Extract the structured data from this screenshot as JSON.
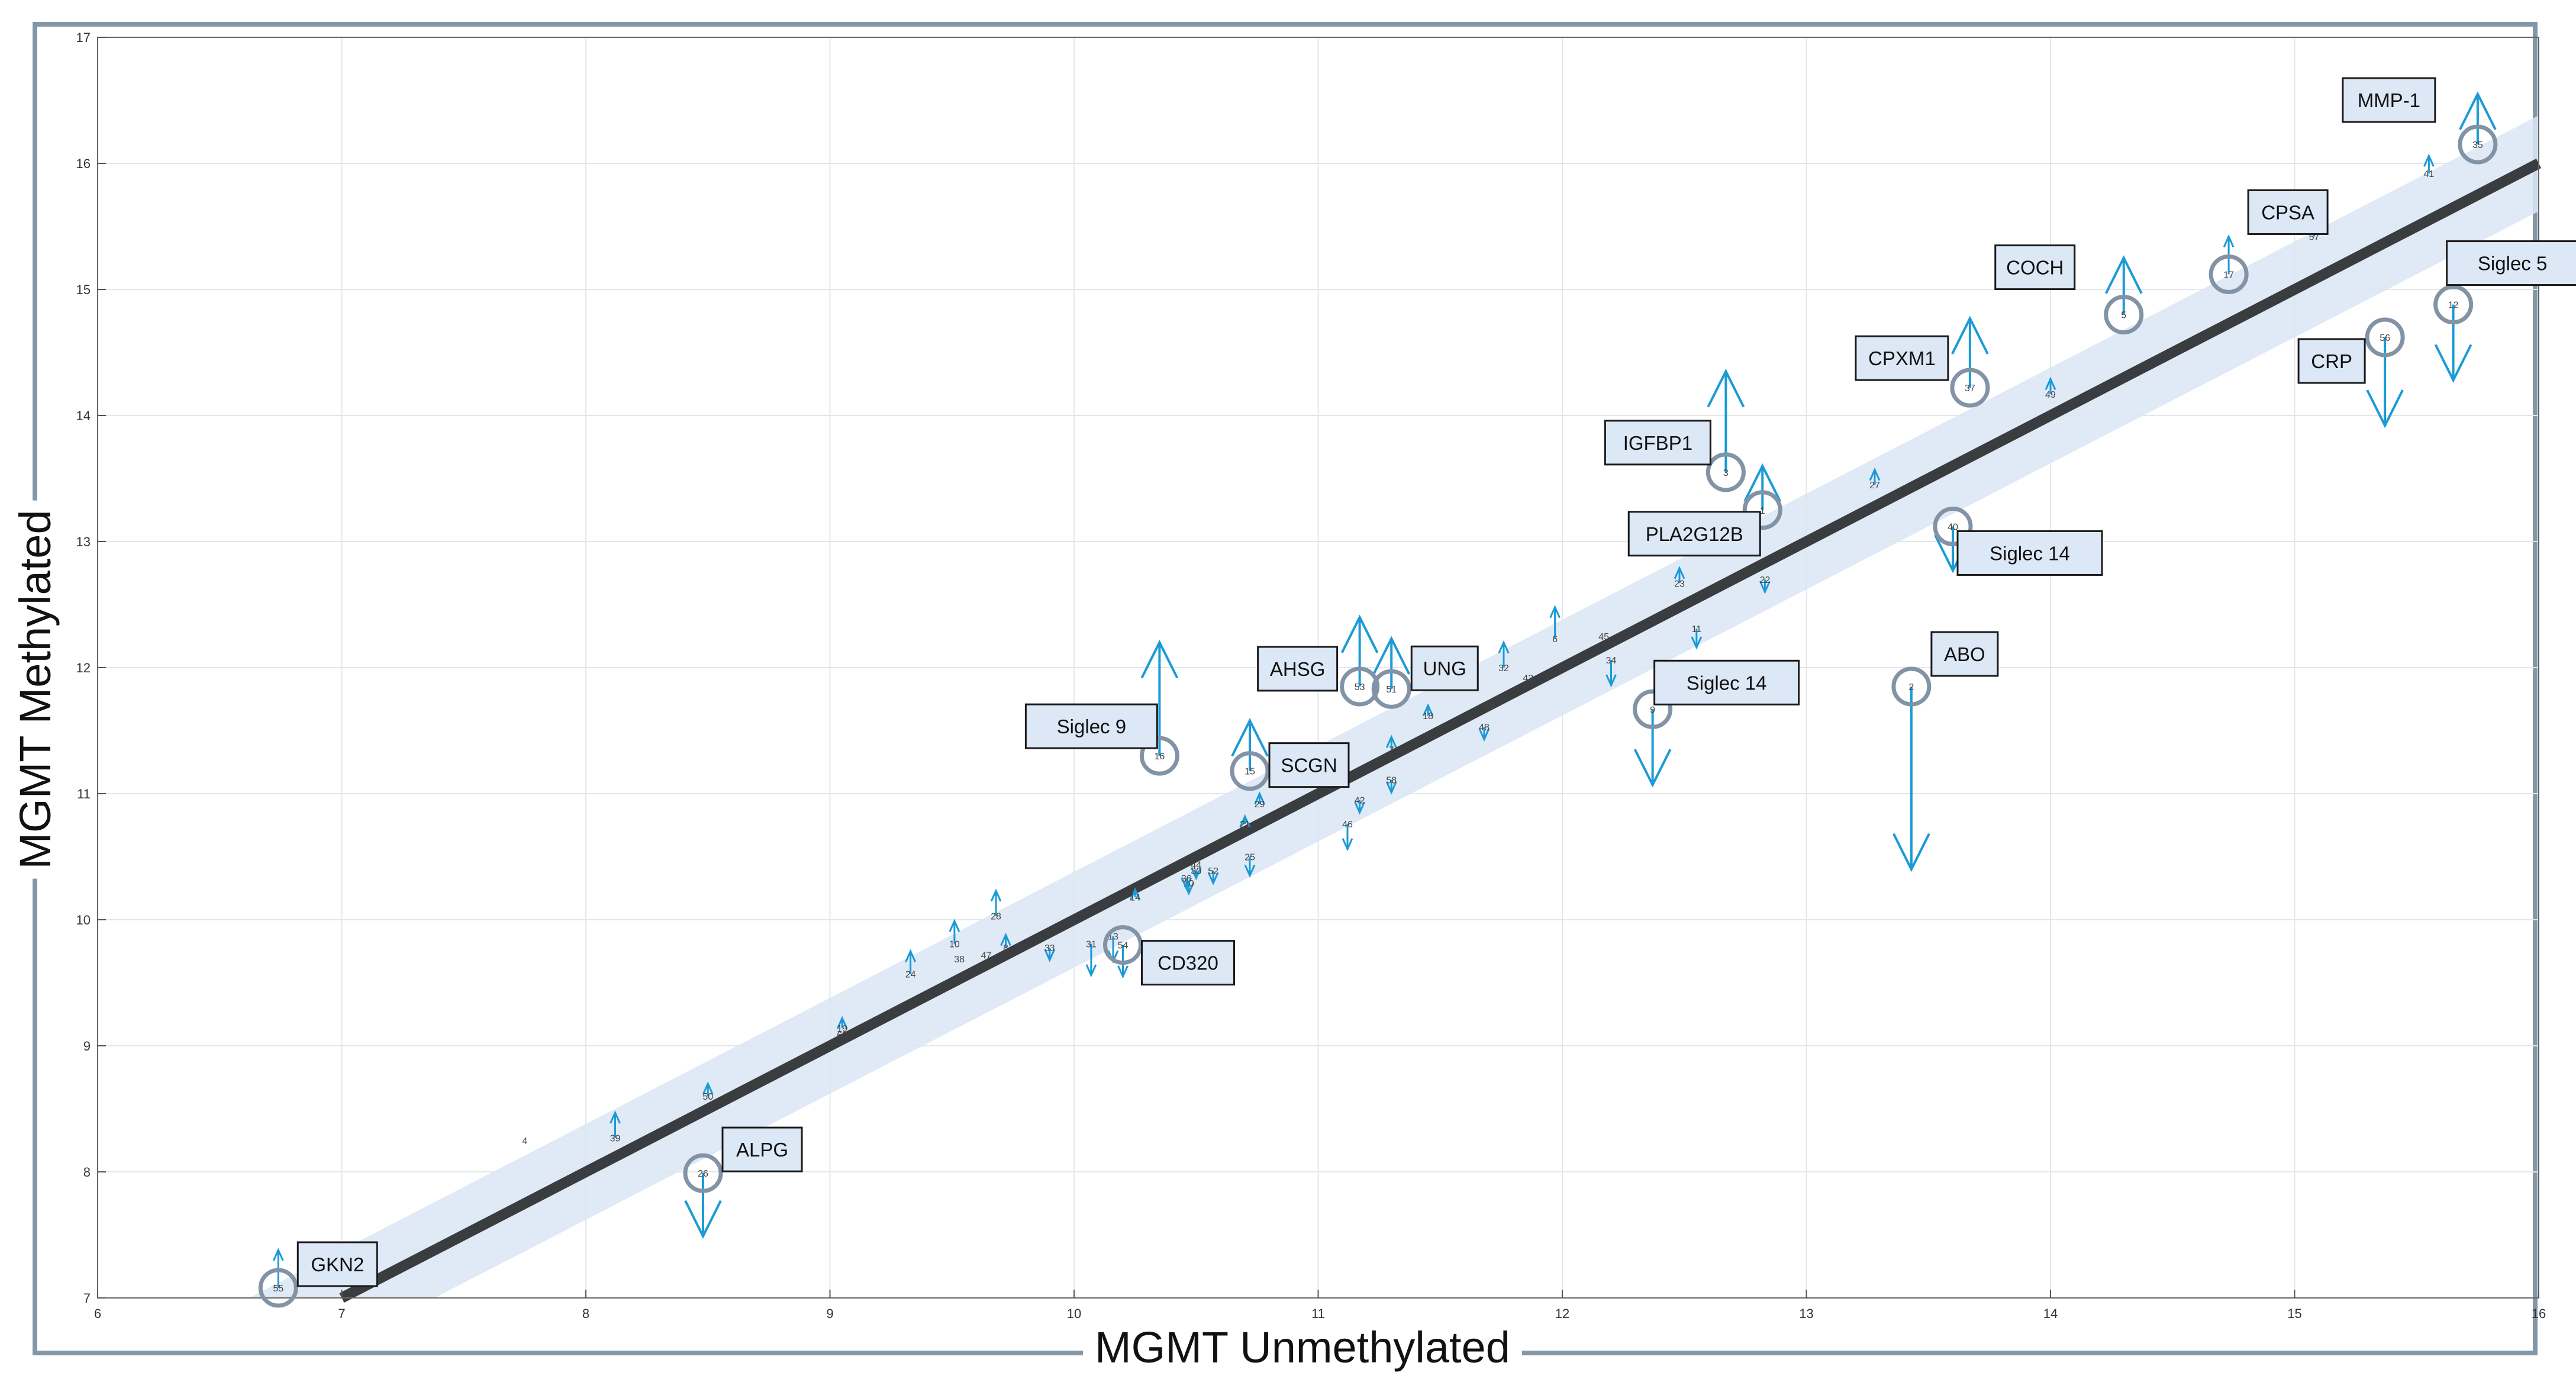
{
  "chart_data": {
    "type": "scatter",
    "title": "",
    "xlabel": "MGMT Unmethylated",
    "ylabel": "MGMT Methylated",
    "xlim": [
      6,
      16
    ],
    "ylim": [
      7,
      17
    ],
    "x_ticks": [
      "6",
      "7",
      "8",
      "9",
      "10",
      "11",
      "12",
      "13",
      "14",
      "15",
      "16"
    ],
    "y_ticks": [
      "7",
      "8",
      "9",
      "10",
      "11",
      "12",
      "13",
      "14",
      "15",
      "16",
      "17"
    ],
    "grid": true,
    "identity_line": {
      "from": [
        7,
        7
      ],
      "to": [
        16,
        16
      ],
      "color": "#3a3d40"
    },
    "confidence_band": {
      "half_width": 0.38,
      "color": "#dbe6f4"
    },
    "colors": {
      "arrow": "#1b9ad6",
      "circle": "#8293a6",
      "label_fill": "#dce8f6",
      "label_border": "#1a1a1a",
      "point_text": "#444444"
    },
    "points": [
      {
        "id": "1",
        "x": 12.82,
        "y": 13.25,
        "change": 0.35
      },
      {
        "id": "2",
        "x": 13.43,
        "y": 11.85,
        "change": -1.45
      },
      {
        "id": "3",
        "x": 12.67,
        "y": 13.55,
        "change": 0.8
      },
      {
        "id": "4",
        "x": 7.75,
        "y": 8.25,
        "change": 0
      },
      {
        "id": "5",
        "x": 14.3,
        "y": 14.8,
        "change": 0.45
      },
      {
        "id": "6",
        "x": 11.97,
        "y": 12.23,
        "change": 0.25
      },
      {
        "id": "7",
        "x": 11.3,
        "y": 11.35,
        "change": 0.1
      },
      {
        "id": "8",
        "x": 9.72,
        "y": 9.78,
        "change": 0.1
      },
      {
        "id": "9",
        "x": 12.37,
        "y": 11.67,
        "change": -0.6
      },
      {
        "id": "10",
        "x": 9.51,
        "y": 9.81,
        "change": 0.18
      },
      {
        "id": "11",
        "x": 12.55,
        "y": 12.31,
        "change": -0.15
      },
      {
        "id": "12",
        "x": 15.65,
        "y": 14.88,
        "change": -0.6
      },
      {
        "id": "13",
        "x": 10.16,
        "y": 9.87,
        "change": -0.2
      },
      {
        "id": "14",
        "x": 10.25,
        "y": 10.18,
        "change": 0.06
      },
      {
        "id": "15",
        "x": 10.72,
        "y": 11.18,
        "change": 0.4
      },
      {
        "id": "16",
        "x": 10.35,
        "y": 11.3,
        "change": 0.9
      },
      {
        "id": "17",
        "x": 14.73,
        "y": 15.12,
        "change": 0.3
      },
      {
        "id": "18",
        "x": 11.45,
        "y": 11.62,
        "change": 0.08
      },
      {
        "id": "19",
        "x": 9.05,
        "y": 9.14,
        "change": 0.08
      },
      {
        "id": "20",
        "x": 10.47,
        "y": 10.29,
        "change": -0.08
      },
      {
        "id": "21",
        "x": 10.7,
        "y": 10.76,
        "change": 0.06
      },
      {
        "id": "22",
        "x": 12.83,
        "y": 12.7,
        "change": -0.1
      },
      {
        "id": "23",
        "x": 12.48,
        "y": 12.67,
        "change": 0.12
      },
      {
        "id": "24",
        "x": 9.33,
        "y": 9.57,
        "change": 0.18
      },
      {
        "id": "25",
        "x": 10.72,
        "y": 10.5,
        "change": -0.15
      },
      {
        "id": "26",
        "x": 8.48,
        "y": 7.99,
        "change": -0.5
      },
      {
        "id": "27",
        "x": 13.28,
        "y": 13.45,
        "change": 0.12
      },
      {
        "id": "28",
        "x": 9.68,
        "y": 10.03,
        "change": 0.2
      },
      {
        "id": "29",
        "x": 10.76,
        "y": 10.92,
        "change": 0.08
      },
      {
        "id": "30",
        "x": 10.5,
        "y": 10.39,
        "change": -0.06
      },
      {
        "id": "31",
        "x": 10.07,
        "y": 9.81,
        "change": -0.25
      },
      {
        "id": "32",
        "x": 11.76,
        "y": 12.0,
        "change": 0.2
      },
      {
        "id": "33",
        "x": 9.9,
        "y": 9.78,
        "change": -0.1
      },
      {
        "id": "34",
        "x": 12.2,
        "y": 12.06,
        "change": -0.2
      },
      {
        "id": "35",
        "x": 15.75,
        "y": 16.15,
        "change": 0.4
      },
      {
        "id": "36",
        "x": 10.46,
        "y": 10.33,
        "change": -0.08
      },
      {
        "id": "37",
        "x": 13.67,
        "y": 14.22,
        "change": 0.55
      },
      {
        "id": "38",
        "x": 9.53,
        "y": 9.69,
        "change": 0
      },
      {
        "id": "39",
        "x": 8.12,
        "y": 8.27,
        "change": 0.2
      },
      {
        "id": "40",
        "x": 13.6,
        "y": 13.12,
        "change": -0.35
      },
      {
        "id": "41",
        "x": 15.55,
        "y": 15.92,
        "change": 0.14
      },
      {
        "id": "42",
        "x": 11.17,
        "y": 10.95,
        "change": -0.1
      },
      {
        "id": "43",
        "x": 11.86,
        "y": 11.92,
        "change": 0
      },
      {
        "id": "44",
        "x": 10.5,
        "y": 10.44,
        "change": 0
      },
      {
        "id": "45",
        "x": 12.17,
        "y": 12.25,
        "change": 0
      },
      {
        "id": "46",
        "x": 11.12,
        "y": 10.76,
        "change": -0.2
      },
      {
        "id": "47",
        "x": 9.64,
        "y": 9.72,
        "change": 0
      },
      {
        "id": "48",
        "x": 11.68,
        "y": 11.53,
        "change": -0.1
      },
      {
        "id": "49",
        "x": 14.0,
        "y": 14.17,
        "change": 0.12
      },
      {
        "id": "50",
        "x": 8.5,
        "y": 8.6,
        "change": 0.1
      },
      {
        "id": "51",
        "x": 11.3,
        "y": 11.83,
        "change": 0.4
      },
      {
        "id": "52",
        "x": 10.57,
        "y": 10.39,
        "change": -0.1
      },
      {
        "id": "53",
        "x": 11.17,
        "y": 11.85,
        "change": 0.55
      },
      {
        "id": "54",
        "x": 10.2,
        "y": 9.8,
        "change": -0.25
      },
      {
        "id": "55",
        "x": 6.74,
        "y": 7.08,
        "change": 0.3
      },
      {
        "id": "56",
        "x": 15.37,
        "y": 14.62,
        "change": -0.7
      },
      {
        "id": "57",
        "x": 15.08,
        "y": 15.42,
        "change": 0.12
      },
      {
        "id": "58",
        "x": 11.3,
        "y": 11.11,
        "change": -0.1
      },
      {
        "id": "59",
        "x": 11.7,
        "y": 11.7,
        "change": 0
      },
      {
        "id": "60",
        "x": 9.05,
        "y": 9.09,
        "change": 0
      }
    ],
    "highlighted": [
      {
        "label": "MMP-1",
        "point": "35"
      },
      {
        "label": "CPSA",
        "point": "17"
      },
      {
        "label": "COCH",
        "point": "5"
      },
      {
        "label": "Siglec 5",
        "point": "12"
      },
      {
        "label": "CRP",
        "point": "56"
      },
      {
        "label": "CPXM1",
        "point": "37"
      },
      {
        "label": "IGFBP1",
        "point": "3"
      },
      {
        "label": "PLA2G12B",
        "point": "1"
      },
      {
        "label": "Siglec 14",
        "point": "40"
      },
      {
        "label": "ABO",
        "point": "2"
      },
      {
        "label": "Siglec 14",
        "point": "9"
      },
      {
        "label": "AHSG",
        "point": "53"
      },
      {
        "label": "UNG",
        "point": "51"
      },
      {
        "label": "Siglec 9",
        "point": "16"
      },
      {
        "label": "SCGN",
        "point": "15"
      },
      {
        "label": "CD320",
        "point": "54"
      },
      {
        "label": "ALPG",
        "point": "26"
      },
      {
        "label": "GKN2",
        "point": "55"
      }
    ]
  }
}
